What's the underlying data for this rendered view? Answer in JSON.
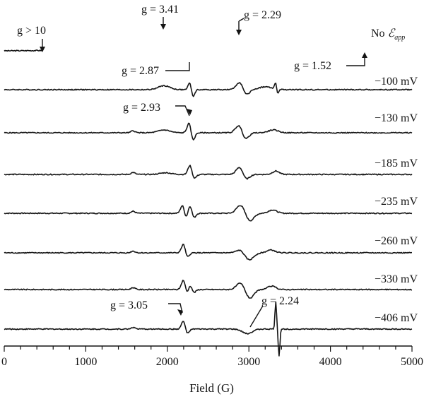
{
  "chart_data": {
    "type": "line",
    "title": "",
    "xlabel": "Field (G)",
    "ylabel": "",
    "xlim": [
      0,
      5000
    ],
    "x_ticks": [
      "0",
      "1000",
      "2000",
      "3000",
      "4000",
      "5000"
    ],
    "grid": false,
    "legend": "none",
    "stroke_color": "#141414",
    "series": [
      {
        "name": "No ℰapp",
        "label_main": "No ",
        "label_symbol": "ℰ",
        "label_sub": "app",
        "features": [
          [
            480,
            0,
            0,
            -1.5
          ],
          [
            1970,
            0.9,
            80,
            0
          ],
          [
            2240,
            -0.45,
            60,
            0
          ],
          [
            2330,
            -1.0,
            70,
            0
          ],
          [
            2890,
            1.6,
            50,
            0
          ],
          [
            2940,
            -1.2,
            45,
            0
          ],
          [
            4440,
            -0.35,
            60,
            0
          ]
        ]
      },
      {
        "name": "−100 mV",
        "features": [
          [
            1960,
            0.7,
            70,
            0
          ],
          [
            2280,
            1.6,
            22,
            0
          ],
          [
            2310,
            -1.6,
            22,
            0
          ],
          [
            2900,
            1.9,
            45,
            0
          ],
          [
            2950,
            -1.5,
            45,
            0
          ],
          [
            3200,
            0.5,
            80,
            0
          ],
          [
            3330,
            1.3,
            14,
            0
          ],
          [
            3350,
            -1.0,
            14,
            0
          ]
        ]
      },
      {
        "name": "−130 mV",
        "features": [
          [
            1580,
            0.35,
            25,
            0
          ],
          [
            1960,
            0.5,
            70,
            0
          ],
          [
            2270,
            2.0,
            25,
            0
          ],
          [
            2310,
            -1.6,
            25,
            0
          ],
          [
            2890,
            1.8,
            45,
            0
          ],
          [
            2945,
            -1.6,
            45,
            0
          ],
          [
            3300,
            0.5,
            60,
            0
          ]
        ]
      },
      {
        "name": "−185 mV",
        "features": [
          [
            1580,
            0.35,
            25,
            0
          ],
          [
            1980,
            0.3,
            70,
            0
          ],
          [
            2280,
            1.9,
            25,
            0
          ],
          [
            2320,
            -0.9,
            30,
            0
          ],
          [
            2900,
            1.8,
            45,
            0
          ],
          [
            2950,
            -1.4,
            45,
            0
          ],
          [
            3330,
            0.6,
            40,
            0
          ]
        ]
      },
      {
        "name": "−235 mV",
        "features": [
          [
            1580,
            0.35,
            25,
            0
          ],
          [
            2190,
            1.7,
            25,
            0
          ],
          [
            2225,
            -1.2,
            25,
            0
          ],
          [
            2280,
            1.6,
            25,
            0
          ],
          [
            2320,
            -1.0,
            25,
            0
          ],
          [
            2900,
            1.5,
            50,
            0
          ],
          [
            3010,
            -1.4,
            50,
            0
          ],
          [
            3290,
            0.6,
            50,
            0
          ]
        ]
      },
      {
        "name": "−260 mV",
        "features": [
          [
            1580,
            0.3,
            25,
            0
          ],
          [
            2200,
            1.7,
            25,
            0
          ],
          [
            2240,
            -1.0,
            25,
            0
          ],
          [
            2900,
            0.6,
            50,
            0
          ],
          [
            3000,
            -1.3,
            55,
            0
          ],
          [
            3270,
            0.5,
            50,
            0
          ]
        ]
      },
      {
        "name": "−330 mV",
        "features": [
          [
            1580,
            0.35,
            25,
            0
          ],
          [
            2200,
            1.9,
            25,
            0
          ],
          [
            2240,
            -1.1,
            25,
            0
          ],
          [
            2280,
            1.1,
            25,
            0
          ],
          [
            2320,
            -0.7,
            25,
            0
          ],
          [
            2900,
            1.2,
            50,
            0
          ],
          [
            3010,
            -1.6,
            50,
            0
          ],
          [
            3280,
            0.6,
            50,
            0
          ]
        ]
      },
      {
        "name": "−406 mV",
        "features": [
          [
            1580,
            0.3,
            25,
            0
          ],
          [
            2200,
            1.6,
            25,
            0
          ],
          [
            2240,
            -1.0,
            25,
            0
          ],
          [
            2980,
            -0.8,
            60,
            0
          ],
          [
            3330,
            4.7,
            10,
            0
          ],
          [
            3370,
            -4.7,
            10,
            0
          ]
        ]
      }
    ],
    "annotations": [
      {
        "text": "g > 10",
        "trace": 0,
        "field": 480
      },
      {
        "text": "g = 3.41",
        "trace": 0,
        "field": 1970
      },
      {
        "text": "g = 2.29",
        "trace": 0,
        "field": 2890
      },
      {
        "text": "g = 2.87",
        "trace": 0,
        "field": 2330
      },
      {
        "text": "g = 1.52",
        "trace": 0,
        "field": 4440
      },
      {
        "text": "g = 2.93",
        "trace": 2,
        "field": 2270
      },
      {
        "text": "g = 3.05",
        "trace": 7,
        "field": 2200
      },
      {
        "text": "g = 2.24",
        "trace": 7,
        "field": 2980
      }
    ]
  }
}
